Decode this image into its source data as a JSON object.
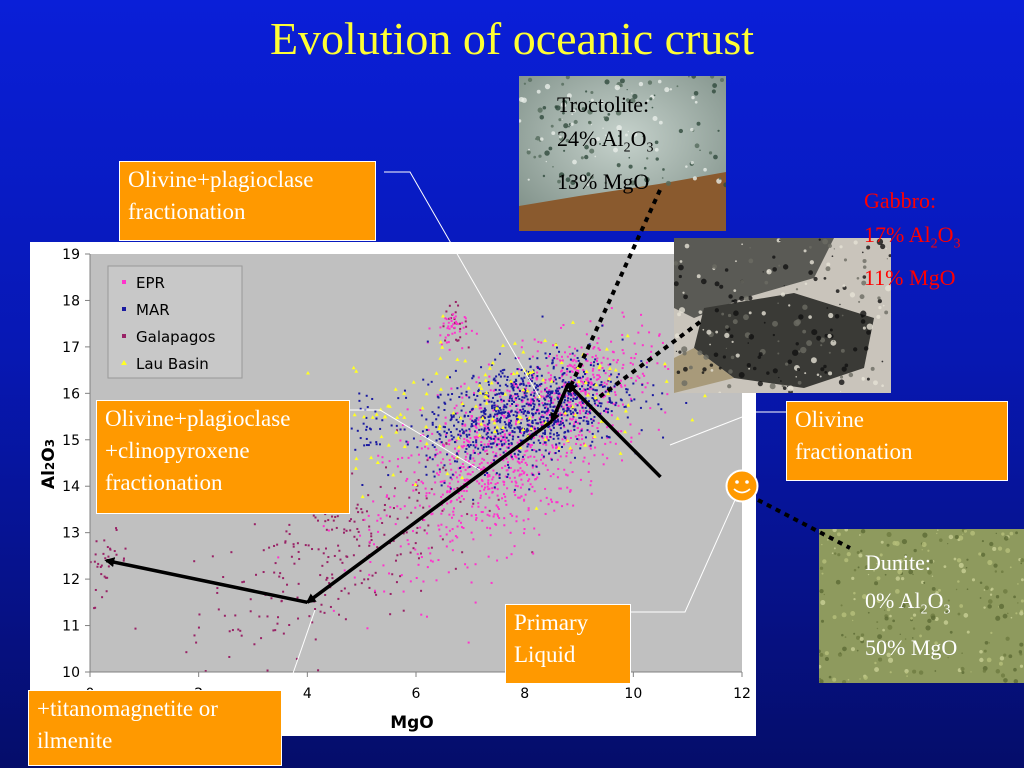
{
  "slide": {
    "title": "Evolution of oceanic crust"
  },
  "chart_data": {
    "type": "scatter",
    "xlabel": "MgO",
    "ylabel": "Al2O3",
    "xlim": [
      0,
      12
    ],
    "ylim": [
      10,
      19
    ],
    "xticks": [
      "0",
      "2",
      "4",
      "6",
      "8",
      "10",
      "12"
    ],
    "yticks": [
      "10",
      "11",
      "12",
      "13",
      "14",
      "15",
      "16",
      "17",
      "18",
      "19"
    ],
    "legend": {
      "placement": "top-left"
    },
    "series": [
      {
        "name": "EPR",
        "color": "#ff33cc",
        "marker": "dot",
        "clusters": [
          {
            "cx": 7.6,
            "cy": 14.6,
            "sx": 1.1,
            "sy": 0.9,
            "trend": 0.55,
            "n": 900
          },
          {
            "cx": 9.0,
            "cy": 16.2,
            "sx": 0.7,
            "sy": 0.5,
            "trend": 0.3,
            "n": 250
          },
          {
            "cx": 6.6,
            "cy": 17.4,
            "sx": 0.15,
            "sy": 0.2,
            "trend": 0,
            "n": 40
          }
        ]
      },
      {
        "name": "MAR",
        "color": "#1a1aa0",
        "marker": "dot",
        "clusters": [
          {
            "cx": 8.0,
            "cy": 15.6,
            "sx": 0.9,
            "sy": 0.55,
            "trend": 0.25,
            "n": 950
          },
          {
            "cx": 5.2,
            "cy": 15.3,
            "sx": 0.2,
            "sy": 0.3,
            "trend": 0,
            "n": 30
          }
        ]
      },
      {
        "name": "Galapagos",
        "color": "#992266",
        "marker": "dot",
        "clusters": [
          {
            "cx": 4.6,
            "cy": 12.6,
            "sx": 1.3,
            "sy": 0.9,
            "trend": 0.5,
            "n": 260
          },
          {
            "cx": 0.3,
            "cy": 12.4,
            "sx": 0.2,
            "sy": 0.3,
            "trend": 0,
            "n": 35
          },
          {
            "cx": 6.7,
            "cy": 17.5,
            "sx": 0.12,
            "sy": 0.2,
            "trend": 0,
            "n": 25
          }
        ]
      },
      {
        "name": "Lau Basin",
        "color": "#ffff22",
        "marker": "triangle",
        "clusters": [
          {
            "cx": 7.2,
            "cy": 15.8,
            "sx": 1.6,
            "sy": 0.8,
            "trend": 0.15,
            "n": 150
          }
        ]
      }
    ],
    "arrows": [
      {
        "label": "olivine",
        "from": [
          10.5,
          14.2
        ],
        "to": [
          8.8,
          16.2
        ]
      },
      {
        "label": "ol-plag",
        "from": [
          8.8,
          16.2
        ],
        "to": [
          8.5,
          15.4
        ]
      },
      {
        "label": "ol-plag-cpx",
        "from": [
          8.5,
          15.4
        ],
        "to": [
          4.0,
          11.5
        ]
      },
      {
        "label": "ti-mag",
        "from": [
          4.0,
          11.5
        ],
        "to": [
          0.3,
          12.4
        ]
      }
    ]
  },
  "annotations": {
    "ol_plag": [
      "Olivine+plagioclase",
      "fractionation"
    ],
    "ol_plag_cpx": [
      "Olivine+plagioclase",
      "+clinopyroxene",
      "fractionation"
    ],
    "olivine": [
      "Olivine",
      "fractionation"
    ],
    "primary": [
      "Primary",
      "Liquid"
    ],
    "titano": [
      "+titanomagnetite or",
      "ilmenite"
    ]
  },
  "rocks": {
    "troctolite": {
      "name": "Troctolite:",
      "al_pct": "24% Al",
      "al_sub": "2",
      "al_o": "O",
      "al_o_sub": "3",
      "mgo": "13% MgO",
      "color": "#000000"
    },
    "gabbro": {
      "name": "Gabbro:",
      "al_pct": "17% Al",
      "al_sub": "2",
      "al_o": "O",
      "al_o_sub": "3",
      "mgo": "11% MgO",
      "color": "#ff0000"
    },
    "dunite": {
      "name": "Dunite:",
      "al_pct": "0% Al",
      "al_sub": "2",
      "al_o": "O",
      "al_o_sub": "3",
      "mgo": "50% MgO",
      "color": "#ffffff"
    }
  },
  "colors": {
    "background": "#0a1fd8",
    "title": "#ffff33",
    "box": "#ff9900",
    "plot_area": "#c0c0c0",
    "smiley": "#ff9900"
  }
}
